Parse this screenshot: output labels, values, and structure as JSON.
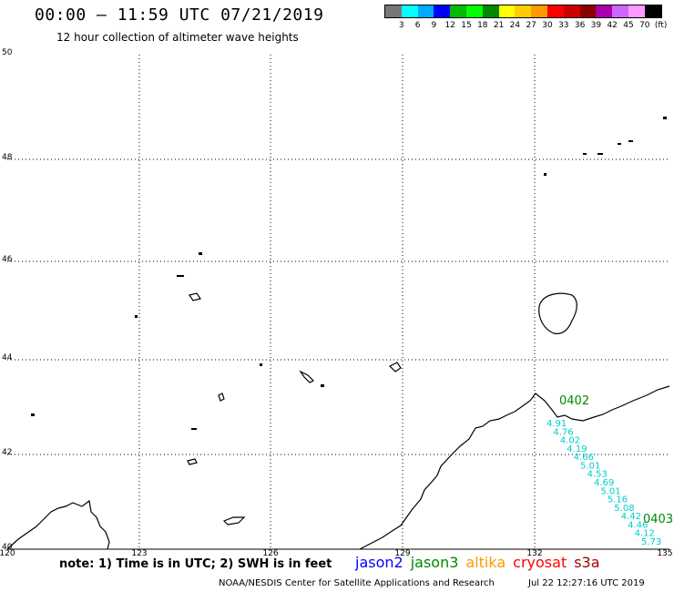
{
  "header": {
    "title": "00:00 – 11:59 UTC 07/21/2019",
    "subtitle": "12 hour collection of altimeter wave heights"
  },
  "legend": {
    "colors": [
      "#777777",
      "#00ffff",
      "#00aaff",
      "#0000ff",
      "#00bb00",
      "#00ff00",
      "#008800",
      "#ffff00",
      "#ffcc00",
      "#ff9900",
      "#ff0000",
      "#cc0000",
      "#880000",
      "#aa00aa",
      "#cc66ff",
      "#ff99ff",
      "#000000"
    ],
    "labels": [
      "3",
      "6",
      "9",
      "12",
      "15",
      "18",
      "21",
      "24",
      "27",
      "30",
      "33",
      "36",
      "39",
      "42",
      "45",
      "70",
      "(ft)"
    ]
  },
  "map": {
    "lat_labels": [
      "50",
      "48",
      "46",
      "44",
      "42",
      "40"
    ],
    "lon_labels": [
      "120",
      "123",
      "126",
      "129",
      "132",
      "135"
    ],
    "track_labels": [
      {
        "text": "0402",
        "color": "#008800"
      },
      {
        "text": "0403",
        "color": "#008800"
      }
    ],
    "wave_values": [
      "4.91",
      "4.76",
      "4.02",
      "4.19",
      "4.66",
      "5.01",
      "4.53",
      "4.69",
      "5.01",
      "5.16",
      "5.08",
      "4.42",
      "4.46",
      "4.12",
      "5.73"
    ],
    "wave_color": "#00cccc"
  },
  "footer": {
    "note": "note: 1) Time is in UTC; 2) SWH is in feet",
    "satellites": [
      {
        "name": "jason2",
        "color": "#0000ff"
      },
      {
        "name": "jason3",
        "color": "#008800"
      },
      {
        "name": "altika",
        "color": "#ff9900"
      },
      {
        "name": "cryosat",
        "color": "#ff0000"
      },
      {
        "name": "s3a",
        "color": "#aa0000"
      }
    ],
    "credit": "NOAA/NESDIS Center for Satellite Applications and Research",
    "timestamp": "Jul 22 12:27:16 UTC 2019"
  }
}
